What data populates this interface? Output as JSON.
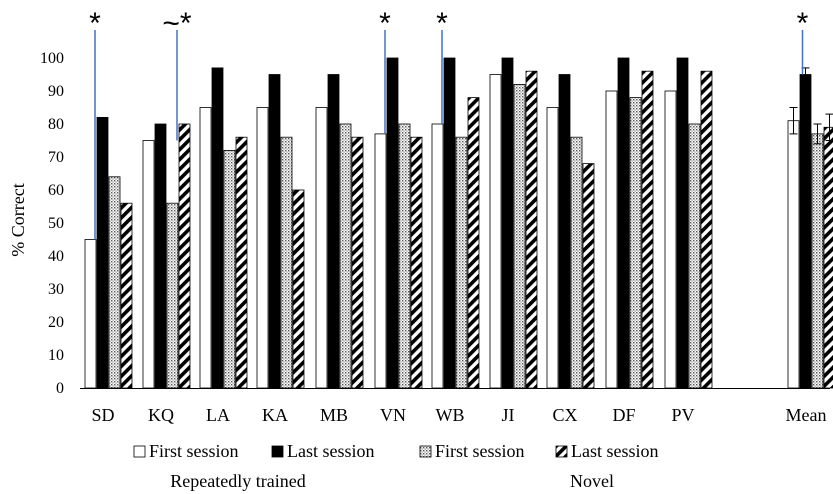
{
  "chart_data": {
    "type": "bar",
    "ylabel": "% Correct",
    "xlabel": "",
    "ylim": [
      0,
      100
    ],
    "yticks": [
      0,
      10,
      20,
      30,
      40,
      50,
      60,
      70,
      80,
      90,
      100
    ],
    "categories": [
      "SD",
      "KQ",
      "LA",
      "KA",
      "MB",
      "VN",
      "WB",
      "JI",
      "CX",
      "DF",
      "PV",
      "Mean"
    ],
    "series": [
      {
        "name": "First session",
        "group": "Repeatedly trained",
        "pattern": "white",
        "values": [
          45,
          75,
          85,
          85,
          85,
          77,
          80,
          95,
          85,
          90,
          90,
          81
        ]
      },
      {
        "name": "Last session",
        "group": "Repeatedly trained",
        "pattern": "black",
        "values": [
          82,
          80,
          97,
          95,
          95,
          100,
          100,
          100,
          95,
          100,
          100,
          95
        ]
      },
      {
        "name": "First session",
        "group": "Novel",
        "pattern": "dotted",
        "values": [
          64,
          56,
          72,
          76,
          80,
          80,
          76,
          92,
          76,
          88,
          80,
          77
        ]
      },
      {
        "name": "Last session",
        "group": "Novel",
        "pattern": "hatched",
        "values": [
          56,
          80,
          76,
          60,
          76,
          76,
          88,
          96,
          68,
          96,
          96,
          79
        ]
      }
    ],
    "mean_error_bars": [
      4,
      2,
      3,
      4
    ],
    "significance": [
      {
        "category": "SD",
        "label": "*"
      },
      {
        "category": "KQ",
        "label": "~*"
      },
      {
        "category": "VN",
        "label": "*"
      },
      {
        "category": "WB",
        "label": "*"
      },
      {
        "category": "Mean",
        "label": "*"
      }
    ],
    "legend": {
      "placement": "bottom",
      "groups": [
        "Repeatedly trained",
        "Novel"
      ]
    },
    "grid": false,
    "colors": {
      "marker_line": "#4472c4",
      "bar_stroke": "#000000"
    }
  }
}
